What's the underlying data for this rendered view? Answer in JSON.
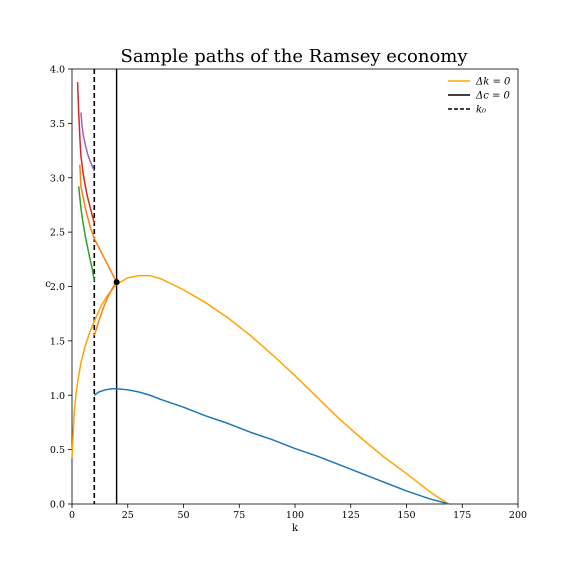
{
  "chart_data": {
    "type": "line",
    "title": "Sample paths of the Ramsey economy",
    "xlabel": "k",
    "ylabel": "c",
    "xlim": [
      0,
      200
    ],
    "ylim": [
      0,
      4
    ],
    "x_ticks": [
      0,
      25,
      50,
      75,
      100,
      125,
      150,
      175,
      200
    ],
    "y_ticks": [
      0.0,
      0.5,
      1.0,
      1.5,
      2.0,
      2.5,
      3.0,
      3.5,
      4.0
    ],
    "x_tick_labels": [
      "0",
      "25",
      "50",
      "75",
      "100",
      "125",
      "150",
      "175",
      "200"
    ],
    "y_tick_labels": [
      "0.0",
      "0.5",
      "1.0",
      "1.5",
      "2.0",
      "2.5",
      "3.0",
      "3.5",
      "4.0"
    ],
    "grid": false,
    "legend_position": "top-right",
    "legend": [
      {
        "label": "Δk = 0",
        "color": "#ffa500",
        "dash": "solid"
      },
      {
        "label": "Δc = 0",
        "color": "#000000",
        "dash": "solid"
      },
      {
        "label": "k₀",
        "color": "#000000",
        "dash": "dashed"
      }
    ],
    "k_dot_zero": {
      "name": "Δk = 0",
      "color": "#ffa500",
      "x": [
        0,
        1,
        2,
        4,
        6,
        8,
        10,
        13,
        16,
        20,
        25,
        30,
        35,
        40,
        50,
        60,
        70,
        80,
        90,
        100,
        110,
        120,
        130,
        140,
        150,
        160,
        165,
        169
      ],
      "y": [
        0.42,
        0.85,
        1.05,
        1.3,
        1.46,
        1.58,
        1.68,
        1.82,
        1.92,
        2.02,
        2.08,
        2.1,
        2.1,
        2.07,
        1.97,
        1.85,
        1.71,
        1.55,
        1.37,
        1.18,
        0.98,
        0.78,
        0.6,
        0.43,
        0.28,
        0.12,
        0.05,
        0.0
      ]
    },
    "c_dot_zero": {
      "name": "Δc = 0",
      "x": 20,
      "color": "#000000"
    },
    "k0": {
      "name": "k₀",
      "x": 10,
      "color": "#000000"
    },
    "steady_state": {
      "x": 20,
      "y": 2.04
    },
    "series": [
      {
        "color": "#1f77b4",
        "x": [
          10,
          12,
          15,
          18,
          20,
          25,
          30,
          35,
          40,
          50,
          60,
          70,
          80,
          90,
          100,
          110,
          120,
          130,
          140,
          150,
          160,
          169
        ],
        "y": [
          1.0,
          1.03,
          1.05,
          1.06,
          1.06,
          1.05,
          1.03,
          1.0,
          0.96,
          0.89,
          0.81,
          0.74,
          0.66,
          0.59,
          0.51,
          0.44,
          0.36,
          0.28,
          0.2,
          0.12,
          0.05,
          0.0
        ]
      },
      {
        "color": "#ff7f0e",
        "x": [
          10,
          12,
          14,
          16,
          18,
          20,
          18,
          16,
          14,
          12,
          10,
          8,
          6,
          4,
          3.5
        ],
        "y": [
          1.55,
          1.68,
          1.8,
          1.9,
          1.98,
          2.04,
          2.12,
          2.2,
          2.28,
          2.36,
          2.44,
          2.56,
          2.72,
          2.92,
          3.12
        ]
      },
      {
        "color": "#2ca02c",
        "x": [
          3,
          4,
          5,
          6,
          7,
          8,
          9,
          10
        ],
        "y": [
          2.92,
          2.72,
          2.58,
          2.46,
          2.36,
          2.26,
          2.17,
          2.05
        ]
      },
      {
        "color": "#d62728",
        "x": [
          2.5,
          3,
          3.5,
          4,
          5,
          6,
          7,
          8,
          9,
          10
        ],
        "y": [
          3.88,
          3.6,
          3.38,
          3.2,
          3.04,
          2.92,
          2.82,
          2.74,
          2.66,
          2.58
        ]
      },
      {
        "color": "#9467bd",
        "x": [
          4,
          4.5,
          5,
          6,
          7,
          8,
          9,
          10
        ],
        "y": [
          3.6,
          3.48,
          3.4,
          3.3,
          3.22,
          3.16,
          3.11,
          3.06
        ]
      }
    ]
  }
}
